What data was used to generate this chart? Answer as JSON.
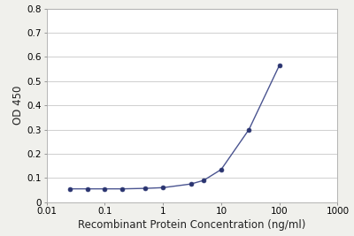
{
  "x_values": [
    0.025,
    0.05,
    0.1,
    0.2,
    0.5,
    1.0,
    3.0,
    5.0,
    10.0,
    30.0,
    100.0
  ],
  "y_values": [
    0.055,
    0.055,
    0.055,
    0.055,
    0.057,
    0.06,
    0.075,
    0.09,
    0.135,
    0.3,
    0.565
  ],
  "line_color": "#4a5490",
  "marker_color": "#2a3470",
  "xlabel": "Recombinant Protein Concentration (ng/ml)",
  "ylabel": "OD 450",
  "xlim": [
    0.01,
    1000
  ],
  "ylim": [
    0,
    0.8
  ],
  "ytick_values": [
    0.0,
    0.1,
    0.2,
    0.3,
    0.4,
    0.5,
    0.6,
    0.7,
    0.8
  ],
  "ytick_labels": [
    "0",
    "0.1",
    "0.2",
    "0.3",
    "0.4",
    "0.5",
    "0.6",
    "0.7",
    "0.8"
  ],
  "xtick_values": [
    0.01,
    0.1,
    1,
    10,
    100,
    1000
  ],
  "xtick_labels": [
    "0.01",
    "0.1",
    "1",
    "10",
    "100",
    "1000"
  ],
  "background_color": "#f0f0ec",
  "plot_bg_color": "#ffffff",
  "grid_color": "#c8c8c8",
  "spine_color": "#aaaaaa",
  "xlabel_fontsize": 8.5,
  "ylabel_fontsize": 8.5,
  "tick_fontsize": 7.5
}
